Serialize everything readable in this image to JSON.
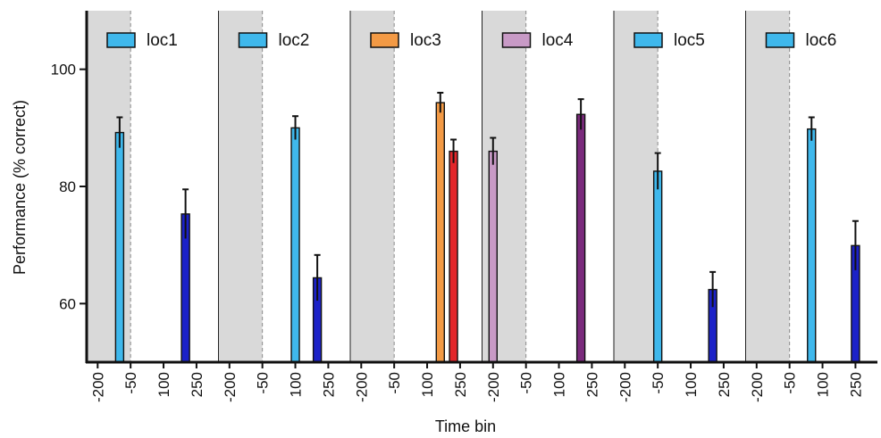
{
  "chart_data": {
    "type": "bar",
    "title": "",
    "xlabel": "Time bin",
    "ylabel": "Performance (% correct)",
    "ylim": [
      50,
      110
    ],
    "yticks": [
      60,
      80,
      100
    ],
    "grid": false,
    "legend_position": "top",
    "xtick_labels": [
      "-200",
      "-50",
      "100",
      "250"
    ],
    "panels": [
      {
        "name": "loc1",
        "legend_color": "#3fb8ec",
        "bars": [
          {
            "bin": -100,
            "value": 89.2,
            "error": 2.6,
            "color": "#3fb8ec"
          },
          {
            "bin": 200,
            "value": 75.3,
            "error": 4.2,
            "color": "#1c22c8"
          }
        ]
      },
      {
        "name": "loc2",
        "legend_color": "#3fb8ec",
        "bars": [
          {
            "bin": 100,
            "value": 90.0,
            "error": 2.0,
            "color": "#3fb8ec"
          },
          {
            "bin": 200,
            "value": 64.4,
            "error": 3.9,
            "color": "#1c22c8"
          }
        ]
      },
      {
        "name": "loc3",
        "legend_color": "#f39a45",
        "bars": [
          {
            "bin": 160,
            "value": 94.3,
            "error": 1.7,
            "color": "#f39a45"
          },
          {
            "bin": 220,
            "value": 86.0,
            "error": 2.0,
            "color": "#e3262a"
          }
        ]
      },
      {
        "name": "loc4",
        "legend_color": "#c89ac6",
        "bars": [
          {
            "bin": -200,
            "value": 86.0,
            "error": 2.3,
            "color": "#c89ac6"
          },
          {
            "bin": 200,
            "value": 92.3,
            "error": 2.6,
            "color": "#7a2a7c"
          }
        ]
      },
      {
        "name": "loc5",
        "legend_color": "#3fb8ec",
        "bars": [
          {
            "bin": -50,
            "value": 82.6,
            "error": 3.1,
            "color": "#3fb8ec"
          },
          {
            "bin": 200,
            "value": 62.4,
            "error": 3.0,
            "color": "#1c22c8"
          }
        ]
      },
      {
        "name": "loc6",
        "legend_color": "#3fb8ec",
        "bars": [
          {
            "bin": 50,
            "value": 89.8,
            "error": 2.0,
            "color": "#3fb8ec"
          },
          {
            "bin": 250,
            "value": 69.9,
            "error": 4.2,
            "color": "#1c22c8"
          }
        ]
      }
    ],
    "shaded_bin_range": [
      -250,
      -50
    ],
    "shade_color": "#d9d9d9"
  }
}
